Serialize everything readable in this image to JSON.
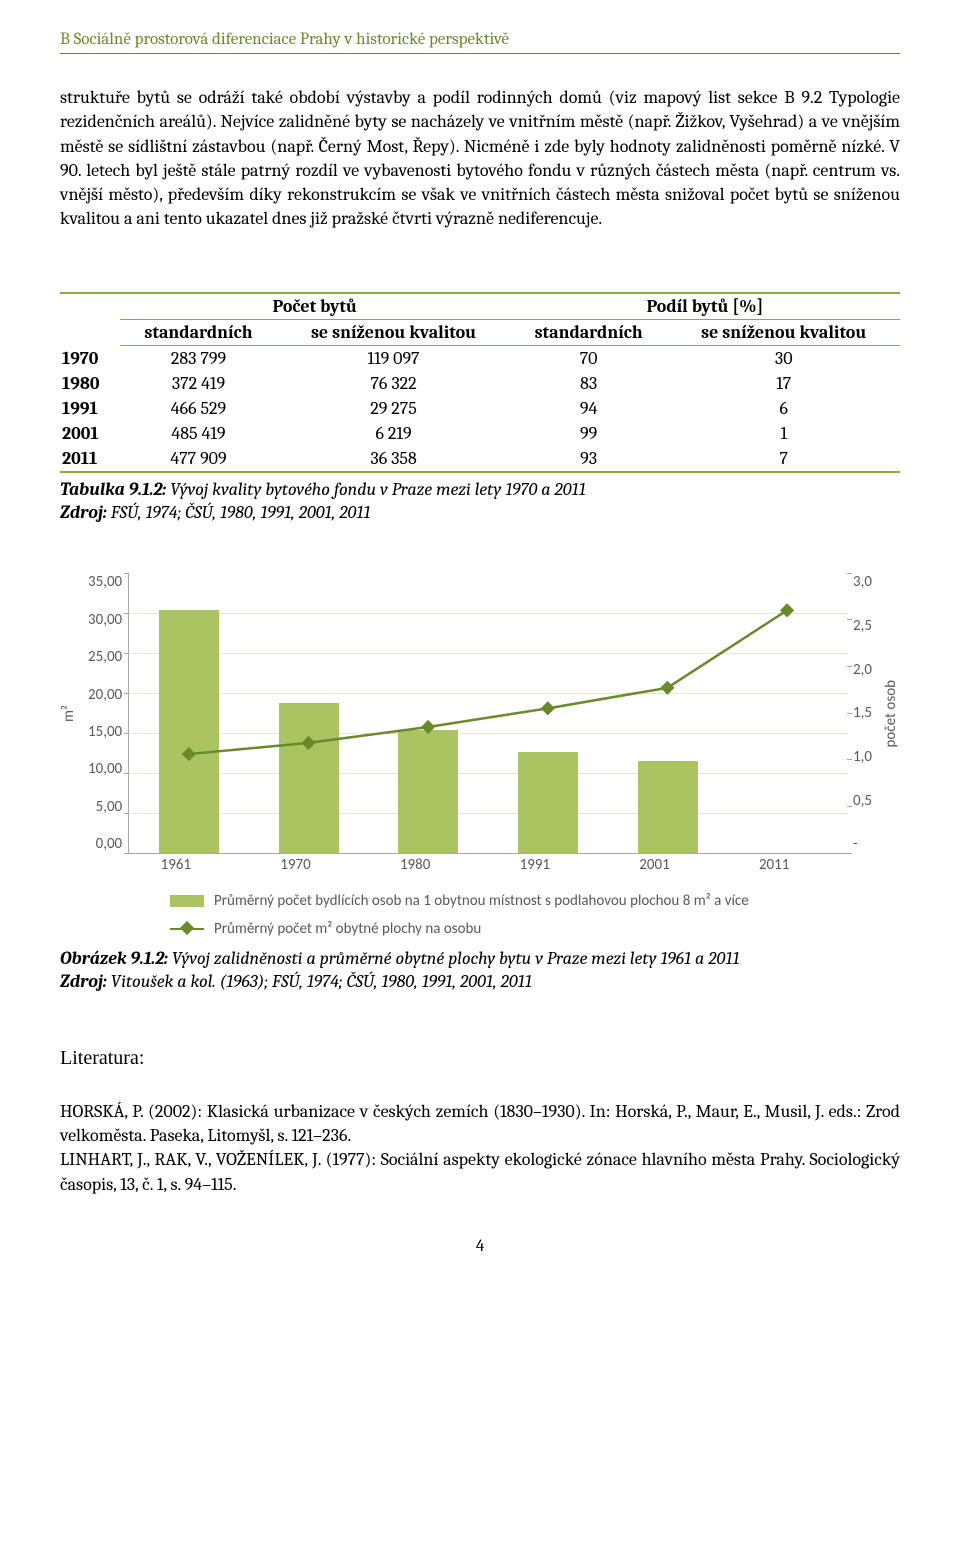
{
  "header": "B Sociálně prostorová diferenciace Prahy v historické perspektivě",
  "paragraph": "struktuře bytů se odráží také období výstavby a podíl rodinných domů (viz mapový list sekce B 9.2 Typologie rezidenčních areálů). Nejvíce zalidněné byty se nacházely ve vnitřním městě (např. Žižkov, Vyšehrad) a ve vnějším městě se sídlištní zástavbou (např. Černý Most, Řepy). Nicméně i zde byly hodnoty zalidněnosti poměrně nízké. V 90. letech byl ještě stále patrný rozdíl ve vybavenosti bytového fondu v různých částech města (např. centrum vs. vnější město), především díky rekonstrukcím se však ve vnitřních částech města snižoval počet bytů se sníženou kvalitou a ani tento ukazatel dnes již pražské čtvrti výrazně nediferencuje.",
  "table": {
    "group1": "Počet bytů",
    "group2": "Podíl bytů [%]",
    "sub_std": "standardních",
    "sub_low": "se sníženou kvalitou",
    "rows": [
      {
        "year": "1970",
        "c1": "283 799",
        "c2": "119 097",
        "c3": "70",
        "c4": "30"
      },
      {
        "year": "1980",
        "c1": "372 419",
        "c2": "76 322",
        "c3": "83",
        "c4": "17"
      },
      {
        "year": "1991",
        "c1": "466 529",
        "c2": "29 275",
        "c3": "94",
        "c4": "6"
      },
      {
        "year": "2001",
        "c1": "485 419",
        "c2": "6 219",
        "c3": "99",
        "c4": "1"
      },
      {
        "year": "2011",
        "c1": "477 909",
        "c2": "36 358",
        "c3": "93",
        "c4": "7"
      }
    ],
    "caption_lead": "Tabulka 9.1.2:",
    "caption_rest": " Vývoj kvality bytového fondu v Praze mezi lety 1970 a 2011",
    "source_lead": "Zdroj:",
    "source_rest": " FSÚ, 1974; ČSÚ, 1980, 1991, 2001, 2011"
  },
  "chart": {
    "type": "bar+line dual-axis",
    "categories": [
      "1961",
      "1970",
      "1980",
      "1991",
      "2001",
      "2011"
    ],
    "bars": [
      30.3,
      18.7,
      15.3,
      12.6,
      11.5,
      0
    ],
    "line": [
      1.06,
      1.18,
      1.35,
      1.55,
      1.77,
      2.6
    ],
    "bar_color": "#aac462",
    "line_color": "#6a8a2a",
    "marker": "diamond",
    "y_left": {
      "label": "m²",
      "min": 0,
      "max": 35,
      "step": 5,
      "ticks": [
        "35,00",
        "30,00",
        "25,00",
        "20,00",
        "15,00",
        "10,00",
        "5,00",
        "0,00"
      ]
    },
    "y_right": {
      "label": "počet osob",
      "min": 0,
      "max": 3,
      "step": 0.5,
      "ticks": [
        "3,0",
        "2,5",
        "2,0",
        "1,5",
        "1,0",
        "0,5",
        "-"
      ]
    },
    "grid_color": "#e8e8d0",
    "axis_color": "#a6a6a6",
    "tick_font_color": "#595959",
    "legend": {
      "bar": "Průměrný počet bydlících osob na 1 obytnou místnost s podlahovou plochou 8 m² a více",
      "line": "Průměrný počet m² obytné plochy na osobu"
    }
  },
  "fig": {
    "lead": "Obrázek 9.1.2:",
    "rest": " Vývoj zalidněnosti a průměrné obytné plochy bytu v Praze mezi lety 1961 a 2011",
    "src_lead": "Zdroj:",
    "src_rest": " Vitoušek a kol. (1963); FSÚ, 1974; ČSÚ, 1980, 1991, 2001, 2011"
  },
  "literature": {
    "heading": "Literatura:",
    "ref1": "HORSKÁ, P. (2002): Klasická urbanizace v českých zemích (1830–1930). In: Horská, P., Maur, E., Musil, J. eds.: Zrod velkoměsta. Paseka, Litomyšl, s. 121–236.",
    "ref2": "LINHART, J., RAK, V., VOŽENÍLEK, J. (1977): Sociální aspekty ekologické zónace hlavního města Prahy. Sociologický časopis, 13, č. 1, s. 94–115."
  },
  "page_number": "4"
}
